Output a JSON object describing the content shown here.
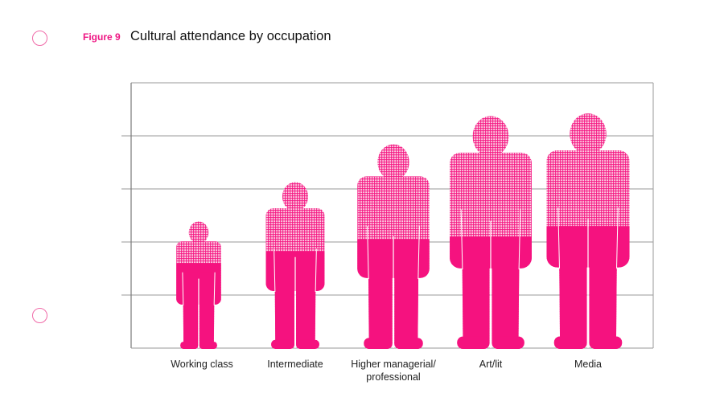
{
  "header": {
    "figure_label": "Figure 9",
    "title": "Cultural attendance by occupation"
  },
  "chart_data": {
    "type": "pictogram-bar",
    "title": "Cultural attendance by occupation",
    "categories": [
      "Working class",
      "Intermediate",
      "Higher managerial/ professional",
      "Art/lit",
      "Media"
    ],
    "values": [
      2.38,
      3.12,
      3.83,
      4.36,
      4.41
    ],
    "solid_values": [
      1.6,
      1.82,
      2.05,
      2.1,
      2.3
    ],
    "ylim": [
      0,
      5
    ],
    "yticks": [
      0,
      1,
      2,
      3,
      4,
      5
    ],
    "ytick_labels_shown": false,
    "grid": true,
    "xlabel": "",
    "ylabel": ""
  },
  "colors": {
    "accent": "#f5127f",
    "hatch": "#f5127f",
    "grid": "#999999"
  }
}
